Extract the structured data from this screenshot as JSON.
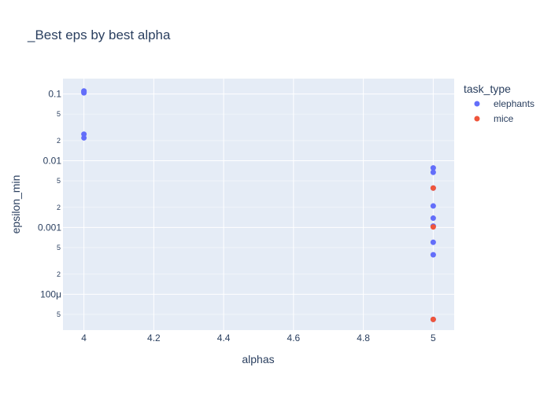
{
  "chart_data": {
    "type": "scatter",
    "title": "_Best eps by best alpha",
    "xlabel": "alphas",
    "ylabel": "epsilon_min",
    "xlim": [
      3.94,
      5.06
    ],
    "ylim": [
      2.9e-05,
      0.17
    ],
    "y_scale": "log",
    "x_ticks": [
      4,
      4.2,
      4.4,
      4.6,
      4.8,
      5
    ],
    "x_tick_labels": [
      "4",
      "4.2",
      "4.4",
      "4.6",
      "4.8",
      "5"
    ],
    "y_major_ticks": [
      0.0001,
      0.001,
      0.01,
      0.1
    ],
    "y_major_labels": [
      "100μ",
      "0.001",
      "0.01",
      "0.1"
    ],
    "y_minor_ticks": [
      5e-05,
      0.0002,
      0.0005,
      0.002,
      0.005,
      0.02,
      0.05
    ],
    "y_minor_labels": [
      "5",
      "2",
      "5",
      "2",
      "5",
      "2",
      "5"
    ],
    "grid": true,
    "legend": {
      "title": "task_type",
      "placement": "right"
    },
    "series": [
      {
        "name": "elephants",
        "color": "#636efa",
        "points": [
          {
            "x": 4,
            "y": 0.111
          },
          {
            "x": 4,
            "y": 0.108
          },
          {
            "x": 4,
            "y": 0.104
          },
          {
            "x": 4,
            "y": 0.025
          },
          {
            "x": 4,
            "y": 0.022
          },
          {
            "x": 5,
            "y": 0.0078
          },
          {
            "x": 5,
            "y": 0.0067
          },
          {
            "x": 5,
            "y": 0.0039
          },
          {
            "x": 5,
            "y": 0.0021
          },
          {
            "x": 5,
            "y": 0.00138
          },
          {
            "x": 5,
            "y": 0.00105
          },
          {
            "x": 5,
            "y": 0.0006
          },
          {
            "x": 5,
            "y": 0.00039
          },
          {
            "x": 5,
            "y": 4.2e-05
          }
        ]
      },
      {
        "name": "mice",
        "color": "#ef553b",
        "points": [
          {
            "x": 5,
            "y": 0.0039
          },
          {
            "x": 5,
            "y": 0.00102
          },
          {
            "x": 5,
            "y": 4.2e-05
          }
        ]
      }
    ]
  }
}
